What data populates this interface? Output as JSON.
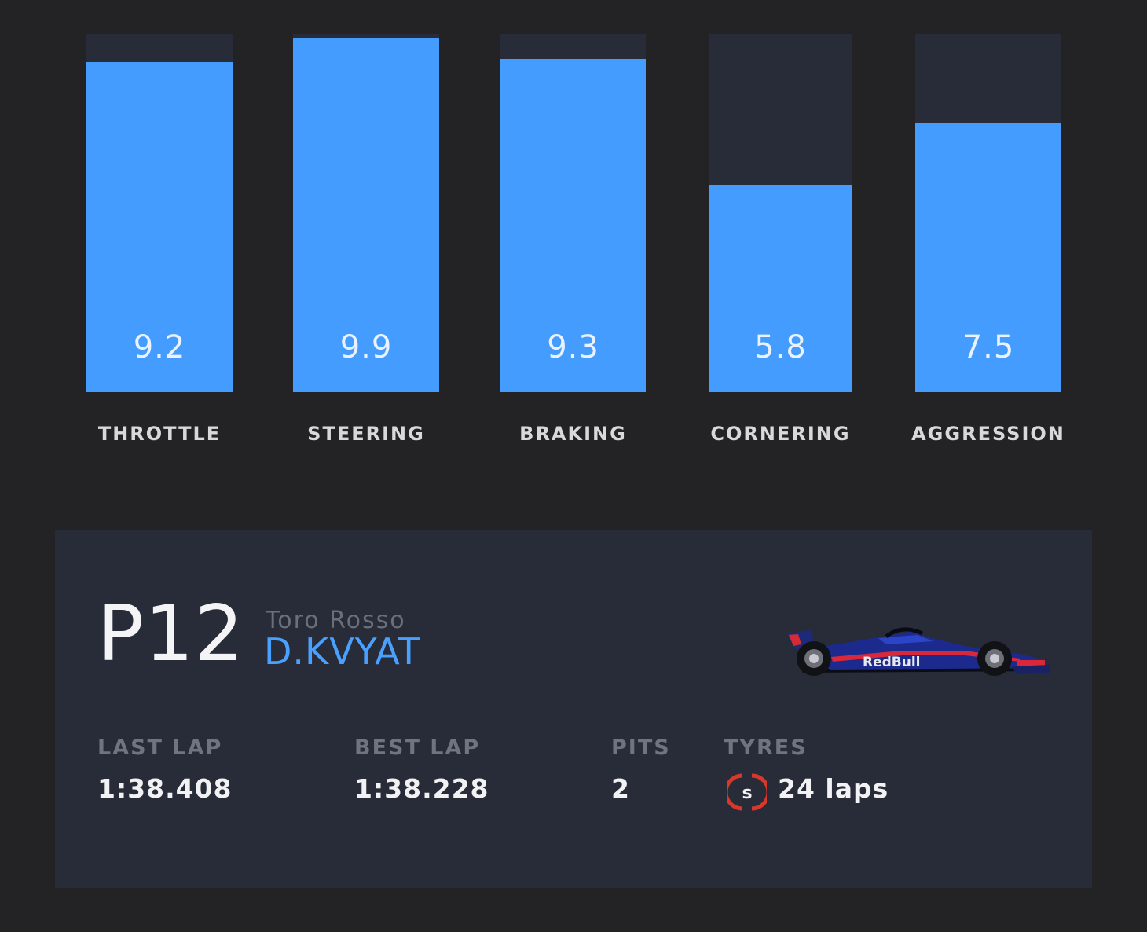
{
  "ratings": [
    {
      "label": "THROTTLE",
      "value": "9.2",
      "level": 0.92
    },
    {
      "label": "STEERING",
      "value": "9.9",
      "level": 0.99
    },
    {
      "label": "BRAKING",
      "value": "9.3",
      "level": 0.93
    },
    {
      "label": "CORNERING",
      "value": "5.8",
      "level": 0.58
    },
    {
      "label": "AGGRESSION",
      "value": "7.5",
      "level": 0.75
    }
  ],
  "driver": {
    "position": "P12",
    "team": "Toro Rosso",
    "name": "D.KVYAT",
    "car_icon": "toro-rosso-car-icon"
  },
  "stats": {
    "last_lap_label": "LAST LAP",
    "last_lap": "1:38.408",
    "best_lap_label": "BEST LAP",
    "best_lap": "1:38.228",
    "pits_label": "PITS",
    "pits": "2",
    "tyres_label": "TYRES",
    "tyre_compound": "S",
    "tyre_laps": "24 laps"
  },
  "colors": {
    "background": "#232325",
    "panel": "#272c38",
    "bar_fill": "#449cff",
    "driver_name": "#4aa0ff",
    "soft_tyre": "#d6382b"
  }
}
